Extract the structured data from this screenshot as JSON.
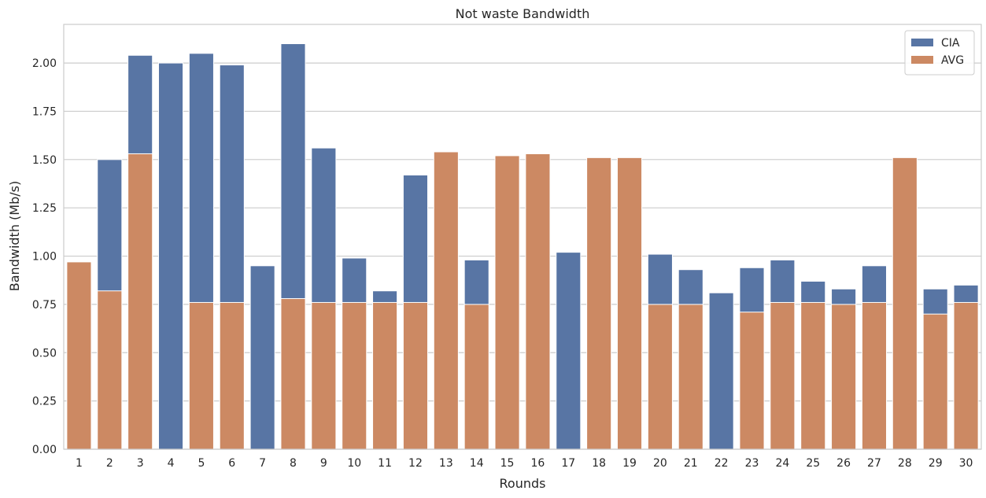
{
  "chart_data": {
    "type": "bar",
    "title": "Not waste Bandwidth",
    "xlabel": "Rounds",
    "ylabel": "Bandwidth (Mb/s)",
    "ylim": [
      0,
      2.2
    ],
    "yticks": [
      "0.00",
      "0.25",
      "0.50",
      "0.75",
      "1.00",
      "1.25",
      "1.50",
      "1.75",
      "2.00"
    ],
    "grid": true,
    "legend_position": "top-right",
    "categories": [
      "1",
      "2",
      "3",
      "4",
      "5",
      "6",
      "7",
      "8",
      "9",
      "10",
      "11",
      "12",
      "13",
      "14",
      "15",
      "16",
      "17",
      "18",
      "19",
      "20",
      "21",
      "22",
      "23",
      "24",
      "25",
      "26",
      "27",
      "28",
      "29",
      "30"
    ],
    "series": [
      {
        "name": "CIA",
        "color": "#5875a4",
        "values": [
          0,
          1.5,
          2.04,
          2.0,
          2.05,
          1.99,
          0.95,
          2.1,
          1.56,
          0.99,
          0.82,
          1.42,
          0,
          0.98,
          0,
          0,
          1.02,
          0,
          0,
          1.01,
          0.93,
          0.81,
          0.94,
          0.98,
          0.87,
          0.83,
          0.95,
          0,
          0.83,
          0.85
        ]
      },
      {
        "name": "AVG",
        "color": "#cc8963",
        "values": [
          0.97,
          0.82,
          1.53,
          0,
          0.76,
          0.76,
          0,
          0.78,
          0.76,
          0.76,
          0.76,
          0.76,
          1.54,
          0.75,
          1.52,
          1.53,
          0,
          1.51,
          1.51,
          0.75,
          0.75,
          0,
          0.71,
          0.76,
          0.76,
          0.75,
          0.76,
          1.51,
          0.7,
          0.76
        ]
      }
    ]
  }
}
